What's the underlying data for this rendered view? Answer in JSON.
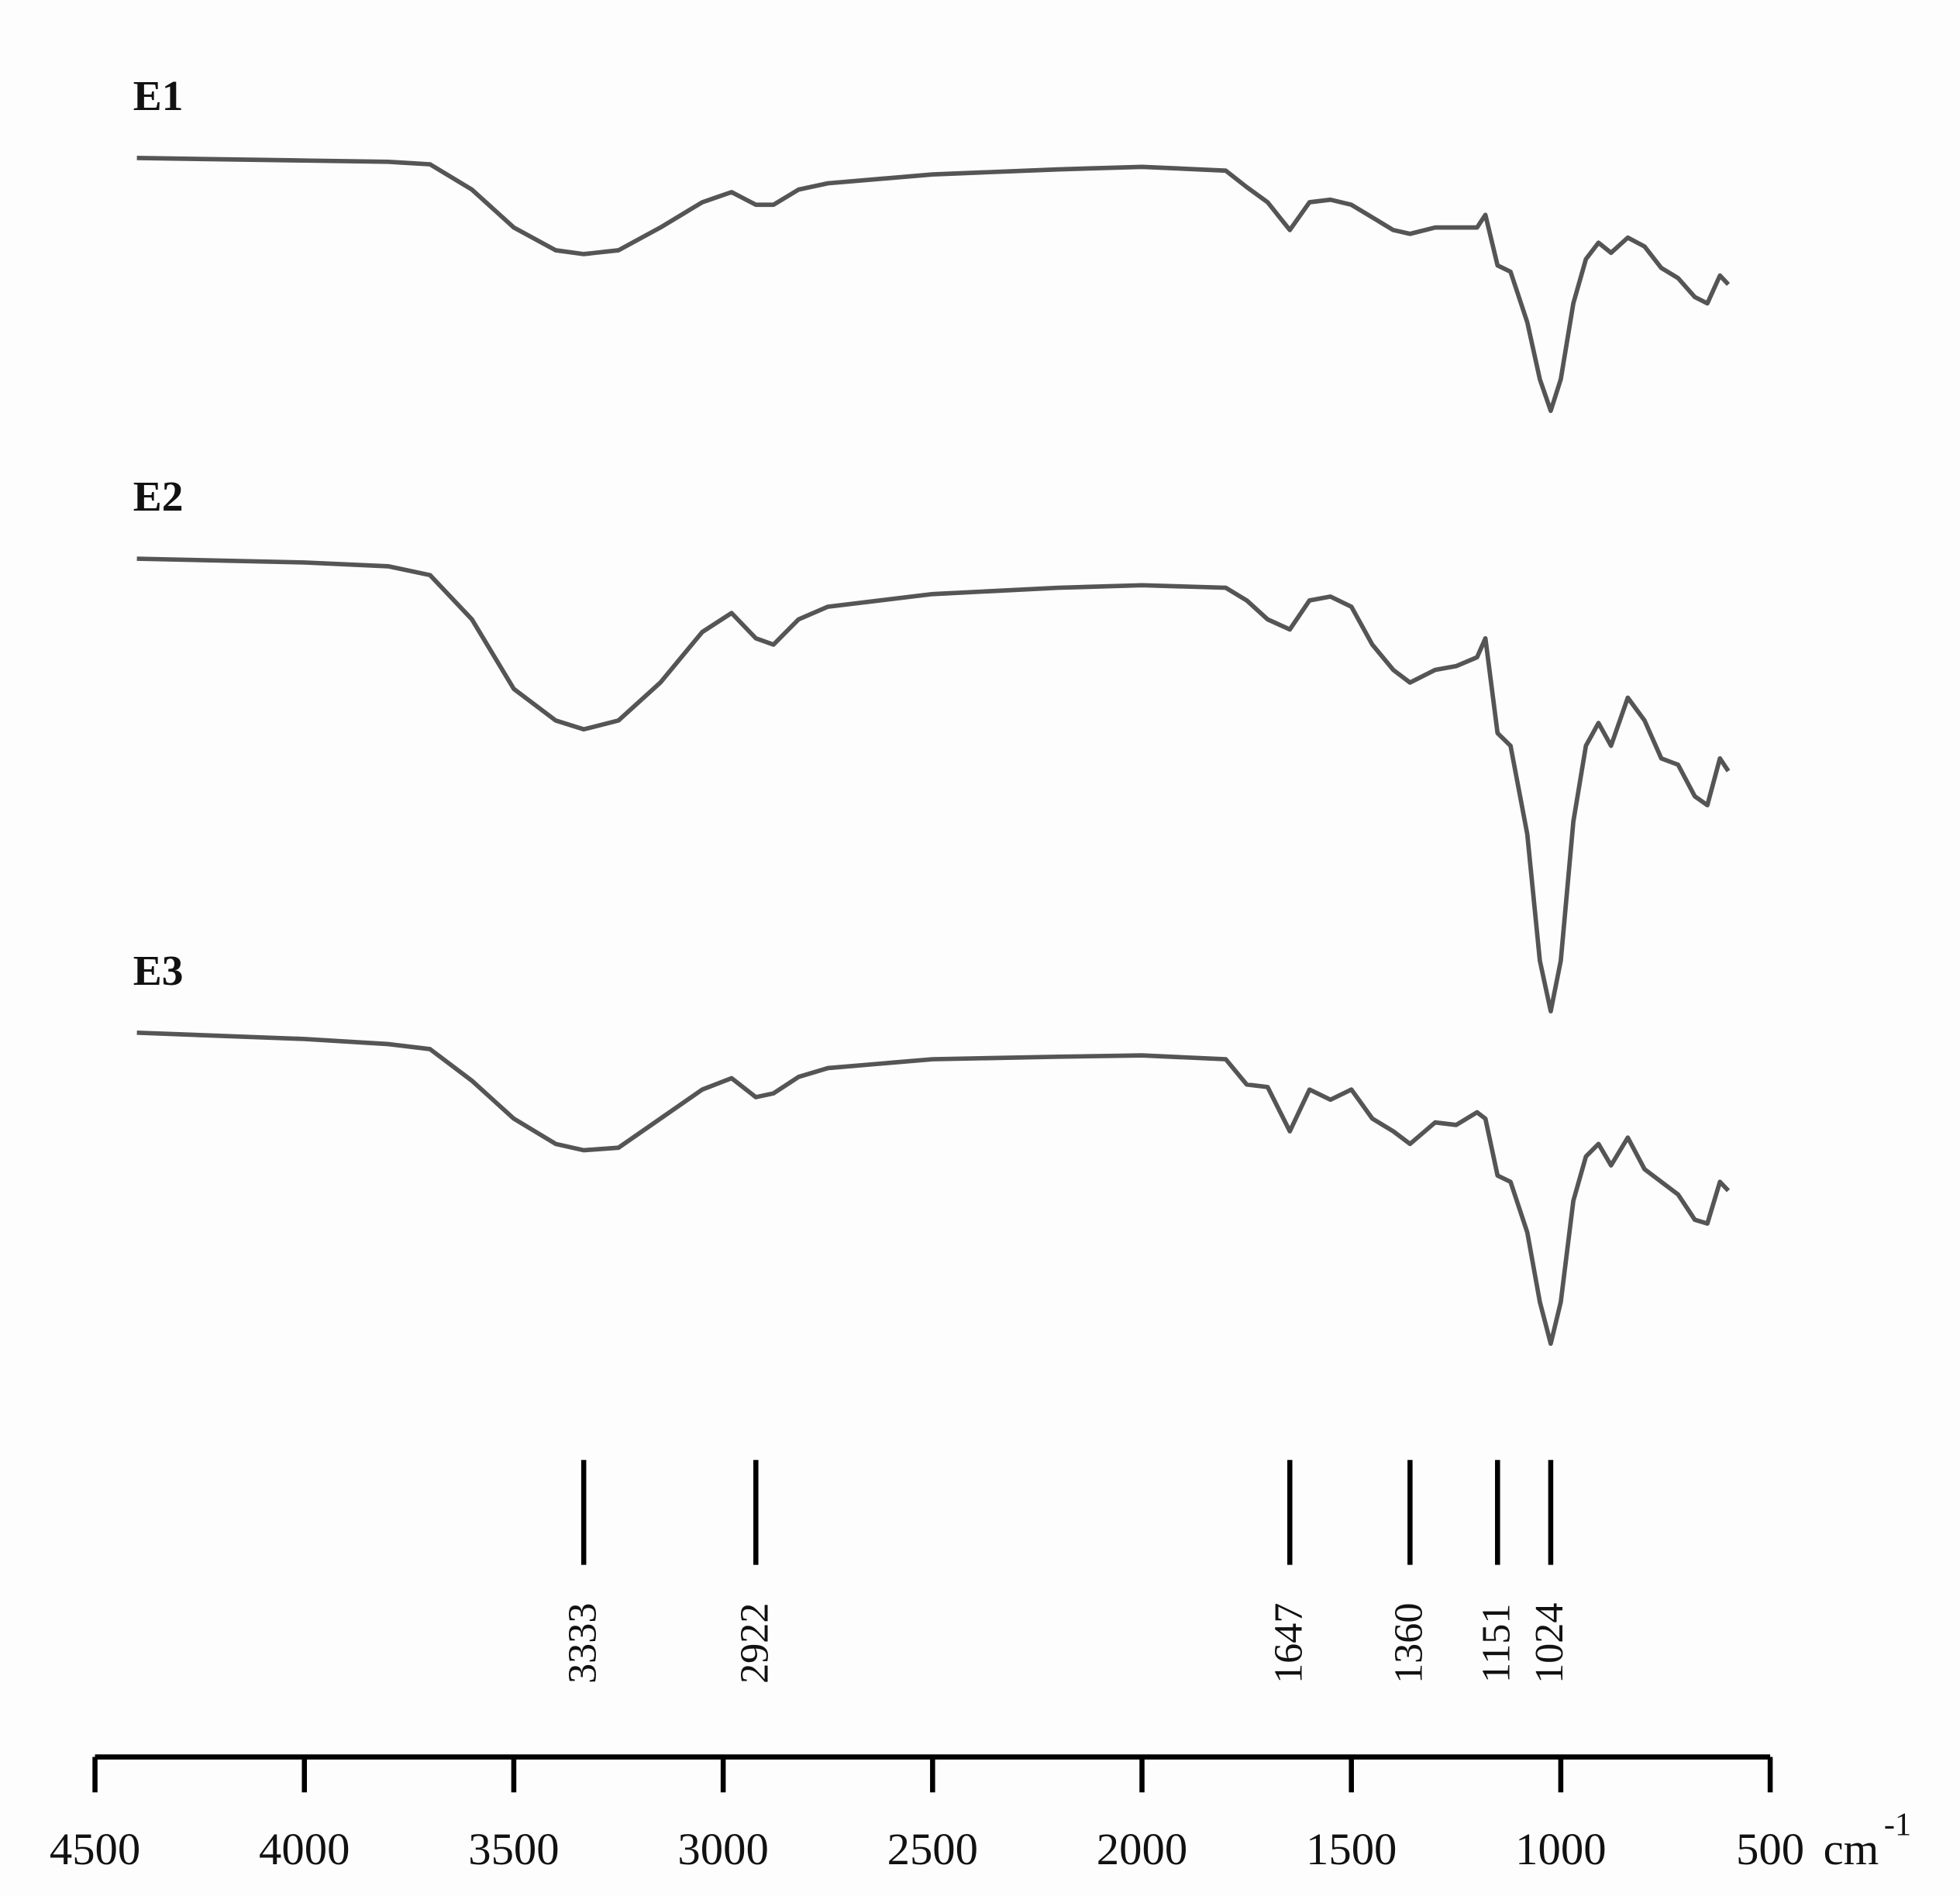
{
  "chart_data": {
    "type": "line",
    "x": [
      4400,
      4000,
      3800,
      3700,
      3600,
      3500,
      3400,
      3333,
      3250,
      3150,
      3050,
      2980,
      2922,
      2880,
      2820,
      2750,
      2500,
      2200,
      2000,
      1800,
      1750,
      1700,
      1647,
      1600,
      1550,
      1500,
      1450,
      1400,
      1360,
      1300,
      1250,
      1200,
      1180,
      1151,
      1120,
      1080,
      1050,
      1024,
      1000,
      970,
      940,
      910,
      880,
      840,
      800,
      760,
      720,
      680,
      650,
      620,
      600
    ],
    "series": [
      {
        "name": "E1",
        "color": "#555555",
        "values": [
          97.5,
          97.3,
          97.2,
          97,
          95,
          92,
          90.2,
          89.9,
          90.2,
          92,
          94,
          94.8,
          93.8,
          93.8,
          95,
          95.5,
          96.2,
          96.6,
          96.8,
          96.5,
          95.2,
          94,
          91.8,
          94,
          94.2,
          93.8,
          92.8,
          91.8,
          91.5,
          92,
          92,
          92,
          93,
          89,
          88.5,
          84.5,
          80,
          77.5,
          80,
          86,
          89.5,
          90.8,
          90,
          91.2,
          90.5,
          88.8,
          88,
          86.5,
          86,
          88.2,
          87.5
        ]
      },
      {
        "name": "E2",
        "color": "#555555",
        "values": [
          65.8,
          65.5,
          65.2,
          64.5,
          61,
          55.5,
          53,
          52.3,
          53,
          56,
          60,
          61.5,
          59.5,
          59,
          61,
          62,
          63,
          63.5,
          63.7,
          63.5,
          62.5,
          61,
          60.2,
          62.5,
          62.8,
          62,
          59,
          57,
          56,
          57,
          57.3,
          58,
          59.5,
          52,
          51,
          44,
          34,
          30,
          34,
          45,
          51,
          52.8,
          51,
          54.8,
          53,
          50,
          49.5,
          47,
          46.3,
          50,
          49
        ]
      },
      {
        "name": "E3",
        "color": "#555555",
        "values": [
          28.3,
          27.8,
          27.4,
          27,
          24.5,
          21.5,
          19.5,
          19,
          19.2,
          21.5,
          23.8,
          24.7,
          23.2,
          23.5,
          24.8,
          25.5,
          26.2,
          26.4,
          26.5,
          26.2,
          24.2,
          24,
          20.5,
          23.8,
          23,
          23.8,
          21.5,
          20.5,
          19.5,
          21.2,
          21,
          22,
          21.5,
          17,
          16.5,
          12.5,
          7,
          3.7,
          7,
          15,
          18.5,
          19.5,
          17.8,
          20,
          17.5,
          16.5,
          15.5,
          13.5,
          13.2,
          16.5,
          15.8
        ]
      }
    ],
    "xlim": [
      4500,
      500
    ],
    "xticks": [
      4500,
      4000,
      3500,
      3000,
      2500,
      2000,
      1500,
      1000,
      500
    ],
    "ylim": [
      0,
      105
    ],
    "peaks": [
      3333,
      2922,
      1647,
      1360,
      1151,
      1024
    ],
    "xlabel": "cm",
    "xlabel_superscript": "-1"
  }
}
